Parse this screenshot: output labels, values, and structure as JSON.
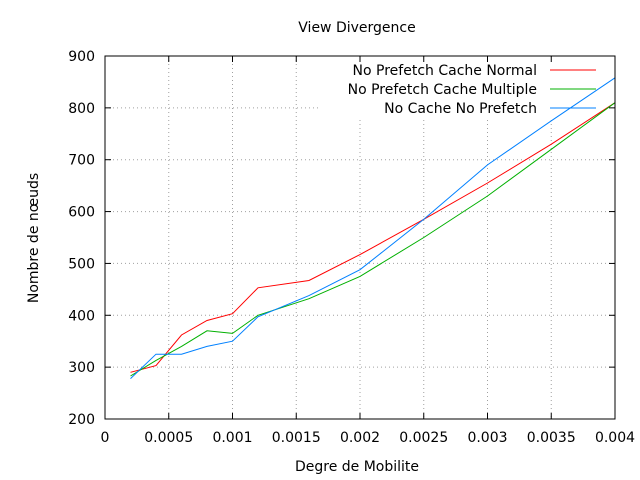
{
  "chart_data": {
    "type": "line",
    "title": "View Divergence",
    "xlabel": "Degre de Mobilite",
    "ylabel": "Nombre de nœuds",
    "xlim": [
      0,
      0.004
    ],
    "ylim": [
      200,
      900
    ],
    "xticks": [
      0,
      0.0005,
      0.001,
      0.0015,
      0.002,
      0.0025,
      0.003,
      0.0035,
      0.004
    ],
    "xtick_labels": [
      "0",
      "0.0005",
      "0.001",
      "0.0015",
      "0.002",
      "0.0025",
      "0.003",
      "0.0035",
      "0.004"
    ],
    "yticks": [
      200,
      300,
      400,
      500,
      600,
      700,
      800,
      900
    ],
    "ytick_labels": [
      "200",
      "300",
      "400",
      "500",
      "600",
      "700",
      "800",
      "900"
    ],
    "grid": true,
    "legend_position": "top-right",
    "series": [
      {
        "name": "No Prefetch Cache Normal",
        "color": "#ff0000",
        "x": [
          0.0002,
          0.0004,
          0.0006,
          0.0008,
          0.001,
          0.0012,
          0.0016,
          0.002,
          0.0025,
          0.003,
          0.0035,
          0.004
        ],
        "y": [
          290,
          303,
          362,
          390,
          403,
          453,
          467,
          517,
          585,
          655,
          730,
          810
        ]
      },
      {
        "name": "No Prefetch Cache Multiple",
        "color": "#00b000",
        "x": [
          0.0002,
          0.0004,
          0.0006,
          0.0008,
          0.001,
          0.0012,
          0.0016,
          0.002,
          0.0025,
          0.003,
          0.0035,
          0.004
        ],
        "y": [
          283,
          313,
          340,
          370,
          365,
          400,
          432,
          475,
          550,
          630,
          720,
          810
        ]
      },
      {
        "name": "No Cache No Prefetch",
        "color": "#0080ff",
        "x": [
          0.0002,
          0.0004,
          0.0006,
          0.0008,
          0.001,
          0.0012,
          0.0016,
          0.002,
          0.0025,
          0.003,
          0.0035,
          0.004
        ],
        "y": [
          278,
          325,
          325,
          340,
          350,
          397,
          438,
          488,
          585,
          690,
          775,
          858
        ]
      }
    ]
  }
}
